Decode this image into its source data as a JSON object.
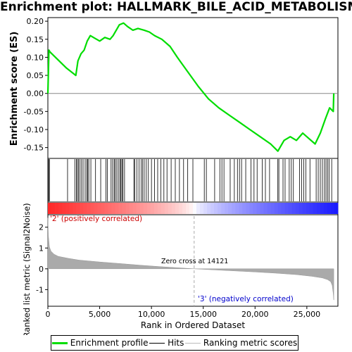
{
  "title": "Enrichment plot: HALLMARK_BILE_ACID_METABOLISM",
  "chart_data": [
    {
      "type": "line",
      "name": "enrichment-profile",
      "ylabel": "Enrichment score (ES)",
      "ylim": [
        -0.18,
        0.21
      ],
      "yticks": [
        "0.20",
        "0.15",
        "0.10",
        "0.05",
        "0.00",
        "-0.05",
        "-0.10",
        "-0.15"
      ],
      "ytick_values": [
        0.2,
        0.15,
        0.1,
        0.05,
        0.0,
        -0.05,
        -0.1,
        -0.15
      ],
      "color": "#00dd00",
      "x": [
        0,
        100,
        200,
        1800,
        2700,
        2900,
        3200,
        3500,
        3800,
        4100,
        4400,
        5000,
        5500,
        6000,
        6300,
        6600,
        6900,
        7300,
        7700,
        8200,
        8700,
        9300,
        9800,
        10300,
        11000,
        11800,
        12500,
        13500,
        14500,
        15500,
        16500,
        17500,
        18500,
        19500,
        20500,
        21500,
        22200,
        22800,
        23400,
        24000,
        24600,
        25200,
        25800,
        26300,
        26800,
        27200,
        27550,
        27600
      ],
      "y": [
        0.0,
        0.12,
        0.115,
        0.07,
        0.05,
        0.09,
        0.11,
        0.12,
        0.145,
        0.16,
        0.155,
        0.145,
        0.155,
        0.15,
        0.16,
        0.175,
        0.19,
        0.195,
        0.185,
        0.175,
        0.18,
        0.175,
        0.17,
        0.16,
        0.15,
        0.13,
        0.1,
        0.06,
        0.02,
        -0.015,
        -0.04,
        -0.06,
        -0.08,
        -0.1,
        -0.12,
        -0.14,
        -0.16,
        -0.13,
        -0.12,
        -0.13,
        -0.11,
        -0.125,
        -0.14,
        -0.11,
        -0.07,
        -0.04,
        -0.05,
        0.0
      ]
    },
    {
      "type": "scatter",
      "name": "hits",
      "color": "#000000",
      "x": [
        20,
        80,
        150,
        1900,
        2600,
        2750,
        2850,
        2950,
        3100,
        3250,
        3400,
        3600,
        3750,
        3850,
        3950,
        4150,
        4600,
        5100,
        5600,
        5750,
        6100,
        6250,
        6400,
        6500,
        6650,
        6800,
        6950,
        7050,
        7150,
        7250,
        7400,
        8300,
        8400,
        8600,
        8800,
        9000,
        9150,
        9300,
        9500,
        9700,
        10000,
        10300,
        10600,
        10900,
        11200,
        11500,
        11900,
        12300,
        12700,
        13100,
        13500,
        14000,
        15100,
        15300,
        16100,
        16600,
        16800,
        17000,
        17600,
        18000,
        18300,
        18500,
        18700,
        19100,
        19600,
        19900,
        20200,
        20700,
        21000,
        21400,
        22200,
        22300,
        22700,
        22900,
        23300,
        23500,
        23700,
        24300,
        24500,
        24700,
        24900,
        25300,
        25900,
        26100,
        26300,
        26500,
        26700,
        26850,
        27000,
        27150,
        27400
      ]
    },
    {
      "type": "area",
      "name": "ranked-list-metric",
      "ylabel": "Ranked list metric (Signal2Noise)",
      "xlabel": "Rank in Ordered Dataset",
      "xlim": [
        0,
        28000
      ],
      "ylim": [
        -1.8,
        2.6
      ],
      "yticks": [
        "2",
        "1",
        "0",
        "-1"
      ],
      "ytick_values": [
        2,
        1,
        0,
        -1
      ],
      "xticks": [
        "0",
        "5,000",
        "10,000",
        "15,000",
        "20,000",
        "25,000"
      ],
      "xtick_values": [
        0,
        5000,
        10000,
        15000,
        20000,
        25000
      ],
      "color": "#aaaaaa",
      "x": [
        0,
        50,
        150,
        300,
        600,
        1000,
        2000,
        3000,
        5000,
        7000,
        9000,
        11000,
        12500,
        14121,
        16000,
        18000,
        20000,
        22000,
        24000,
        25500,
        26500,
        27000,
        27300,
        27450,
        27550,
        27600
      ],
      "y": [
        2.45,
        1.6,
        1.05,
        0.85,
        0.7,
        0.6,
        0.5,
        0.42,
        0.33,
        0.25,
        0.17,
        0.1,
        0.05,
        0.0,
        -0.05,
        -0.1,
        -0.15,
        -0.21,
        -0.28,
        -0.36,
        -0.44,
        -0.52,
        -0.62,
        -0.8,
        -1.2,
        -1.5
      ],
      "zero_cross": 14121,
      "zero_cross_label": "Zero cross at 14121",
      "pos_label": "'2' (positively correlated)",
      "neg_label": "'3' (negatively correlated)"
    }
  ],
  "legend": {
    "profile": "Enrichment profile",
    "hits": "Hits",
    "metric": "Ranking metric scores",
    "profile_color": "#00dd00",
    "hits_color": "#000000",
    "metric_color": "#bbbbbb"
  }
}
